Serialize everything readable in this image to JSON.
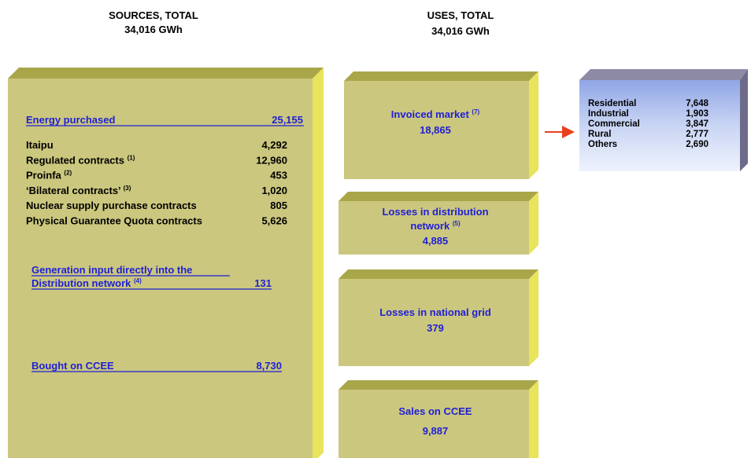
{
  "sources": {
    "title": "SOURCES, TOTAL",
    "total": "34,016 GWh",
    "energy_purchased": {
      "label": "Energy purchased",
      "value": "25,155"
    },
    "items": [
      {
        "label": "Itaipu",
        "value": "4,292"
      },
      {
        "label": "Regulated contracts",
        "note": "(1)",
        "value": "12,960"
      },
      {
        "label": "Proinfa",
        "note": "(2)",
        "value": "453"
      },
      {
        "label": "‘Bilateral contracts’",
        "note": "(3)",
        "value": "1,020"
      },
      {
        "label": "Nuclear supply purchase contracts",
        "value": "805"
      },
      {
        "label": "Physical Guarantee Quota contracts",
        "value": "5,626"
      }
    ],
    "generation_input": {
      "lines": [
        "Generation input directly into the",
        "Distribution network"
      ],
      "note": "(4)",
      "value": "131"
    },
    "bought_on_ccee": {
      "label": "Bought on CCEE",
      "value": "8,730"
    }
  },
  "uses": {
    "title": "USES, TOTAL",
    "total": "34,016 GWh",
    "boxes": [
      {
        "lines": [
          "Invoiced market"
        ],
        "note": "(7)",
        "value": "18,865"
      },
      {
        "lines": [
          "Losses in distribution",
          "network"
        ],
        "note": "(5)",
        "value": "4,885"
      },
      {
        "lines": [
          "Losses in national grid"
        ],
        "value": "379"
      },
      {
        "lines": [
          "Sales on CCEE"
        ],
        "value": "9,887"
      }
    ]
  },
  "invoiced_breakdown": [
    {
      "label": "Residential",
      "value": "7,648"
    },
    {
      "label": "Industrial",
      "value": "1,903"
    },
    {
      "label": "Commercial",
      "value": "3,847"
    },
    {
      "label": "Rural",
      "value": "2,777"
    },
    {
      "label": "Others",
      "value": "2,690"
    }
  ]
}
